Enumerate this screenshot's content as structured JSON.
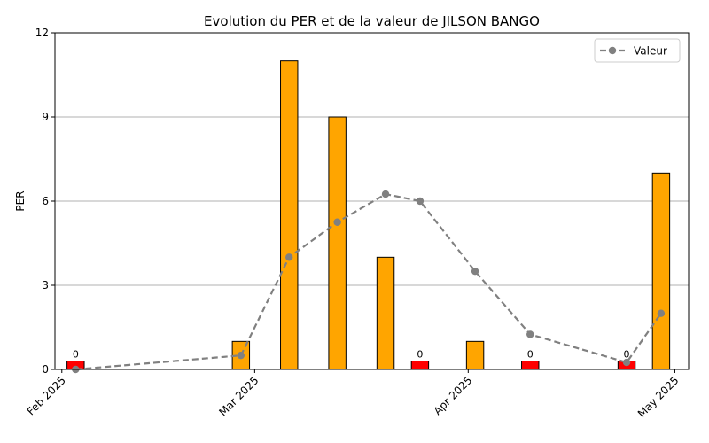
{
  "chart_data": {
    "type": "bar",
    "title": "Evolution du PER et de la valeur de JILSON BANGO",
    "xlabel": "",
    "ylabel": "PER",
    "ylim": [
      0,
      12
    ],
    "yticks": [
      0,
      3,
      6,
      9,
      12
    ],
    "xlim": [
      "2025-01-31",
      "2025-05-03"
    ],
    "xticks": [
      {
        "date": "2025-02-01",
        "label": "Feb 2025"
      },
      {
        "date": "2025-03-01",
        "label": "Mar 2025"
      },
      {
        "date": "2025-04-01",
        "label": "Apr 2025"
      },
      {
        "date": "2025-05-01",
        "label": "May 2025"
      }
    ],
    "grid": "y",
    "legend_position": "top-right",
    "colors": {
      "positive": "#FFA500",
      "zero": "#FF0000",
      "line": "#808080",
      "edge": "#000000",
      "grid": "#b0b0b0"
    },
    "zero_bar_display_height": 0.3,
    "bars": [
      {
        "date": "2025-02-03",
        "value": 0,
        "label": "0"
      },
      {
        "date": "2025-02-27",
        "value": 1
      },
      {
        "date": "2025-03-06",
        "value": 11
      },
      {
        "date": "2025-03-13",
        "value": 9
      },
      {
        "date": "2025-03-20",
        "value": 4
      },
      {
        "date": "2025-03-25",
        "value": 0,
        "label": "0"
      },
      {
        "date": "2025-04-02",
        "value": 1
      },
      {
        "date": "2025-04-10",
        "value": 0,
        "label": "0"
      },
      {
        "date": "2025-04-24",
        "value": 0,
        "label": "0"
      },
      {
        "date": "2025-04-29",
        "value": 7
      }
    ],
    "series": [
      {
        "name": "Valeur",
        "type": "line",
        "style": "dashed",
        "points": [
          {
            "date": "2025-02-03",
            "value": 0.0
          },
          {
            "date": "2025-02-27",
            "value": 0.5
          },
          {
            "date": "2025-03-06",
            "value": 4.0
          },
          {
            "date": "2025-03-13",
            "value": 5.25
          },
          {
            "date": "2025-03-20",
            "value": 6.25
          },
          {
            "date": "2025-03-25",
            "value": 6.0
          },
          {
            "date": "2025-04-02",
            "value": 3.5
          },
          {
            "date": "2025-04-10",
            "value": 1.25
          },
          {
            "date": "2025-04-24",
            "value": 0.25
          },
          {
            "date": "2025-04-29",
            "value": 2.0
          }
        ]
      }
    ]
  }
}
